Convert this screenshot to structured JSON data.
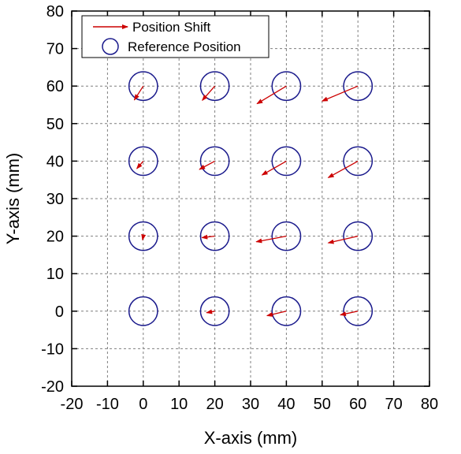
{
  "chart_data": {
    "type": "scatter",
    "title": "",
    "xlabel": "X-axis (mm)",
    "ylabel": "Y-axis (mm)",
    "xlim": [
      -20,
      80
    ],
    "ylim": [
      -20,
      80
    ],
    "xticks": [
      -20,
      -10,
      0,
      10,
      20,
      30,
      40,
      50,
      60,
      70,
      80
    ],
    "yticks": [
      -20,
      -10,
      0,
      10,
      20,
      30,
      40,
      50,
      60,
      70,
      80
    ],
    "grid": true,
    "legend_position": "top-left",
    "legend": {
      "shift_label": "Position Shift",
      "reference_label": "Reference Position"
    },
    "colors": {
      "shift": "#cc0000",
      "reference": "#1a1a8c"
    },
    "reference_radius": 4,
    "series": [
      {
        "name": "Reference Position",
        "points": [
          [
            0,
            60
          ],
          [
            20,
            60
          ],
          [
            40,
            60
          ],
          [
            60,
            60
          ],
          [
            0,
            40
          ],
          [
            20,
            40
          ],
          [
            40,
            40
          ],
          [
            60,
            40
          ],
          [
            0,
            20
          ],
          [
            20,
            20
          ],
          [
            40,
            20
          ],
          [
            60,
            20
          ],
          [
            0,
            0
          ],
          [
            20,
            0
          ],
          [
            40,
            0
          ],
          [
            60,
            0
          ]
        ]
      },
      {
        "name": "Position Shift",
        "arrows": [
          {
            "from": [
              0,
              60
            ],
            "to": [
              -2.5,
              56.3
            ]
          },
          {
            "from": [
              20,
              60
            ],
            "to": [
              16.5,
              56.2
            ]
          },
          {
            "from": [
              40,
              60
            ],
            "to": [
              31.8,
              55.3
            ]
          },
          {
            "from": [
              60,
              60
            ],
            "to": [
              50.0,
              56.0
            ]
          },
          {
            "from": [
              0,
              40
            ],
            "to": [
              -1.8,
              38.0
            ]
          },
          {
            "from": [
              20,
              40
            ],
            "to": [
              15.7,
              37.8
            ]
          },
          {
            "from": [
              40,
              40
            ],
            "to": [
              33.2,
              36.3
            ]
          },
          {
            "from": [
              60,
              40
            ],
            "to": [
              51.7,
              35.6
            ]
          },
          {
            "from": [
              0,
              20
            ],
            "to": [
              -0.2,
              19.0
            ]
          },
          {
            "from": [
              20,
              20
            ],
            "to": [
              16.4,
              19.6
            ]
          },
          {
            "from": [
              40,
              20
            ],
            "to": [
              31.6,
              18.5
            ]
          },
          {
            "from": [
              60,
              20
            ],
            "to": [
              51.7,
              18.2
            ]
          },
          {
            "from": [
              0,
              0
            ],
            "to": [
              0,
              0
            ]
          },
          {
            "from": [
              20,
              0
            ],
            "to": [
              17.7,
              -0.4
            ]
          },
          {
            "from": [
              40,
              0
            ],
            "to": [
              34.6,
              -1.2
            ]
          },
          {
            "from": [
              60,
              0
            ],
            "to": [
              55.1,
              -1.0
            ]
          }
        ]
      }
    ]
  }
}
